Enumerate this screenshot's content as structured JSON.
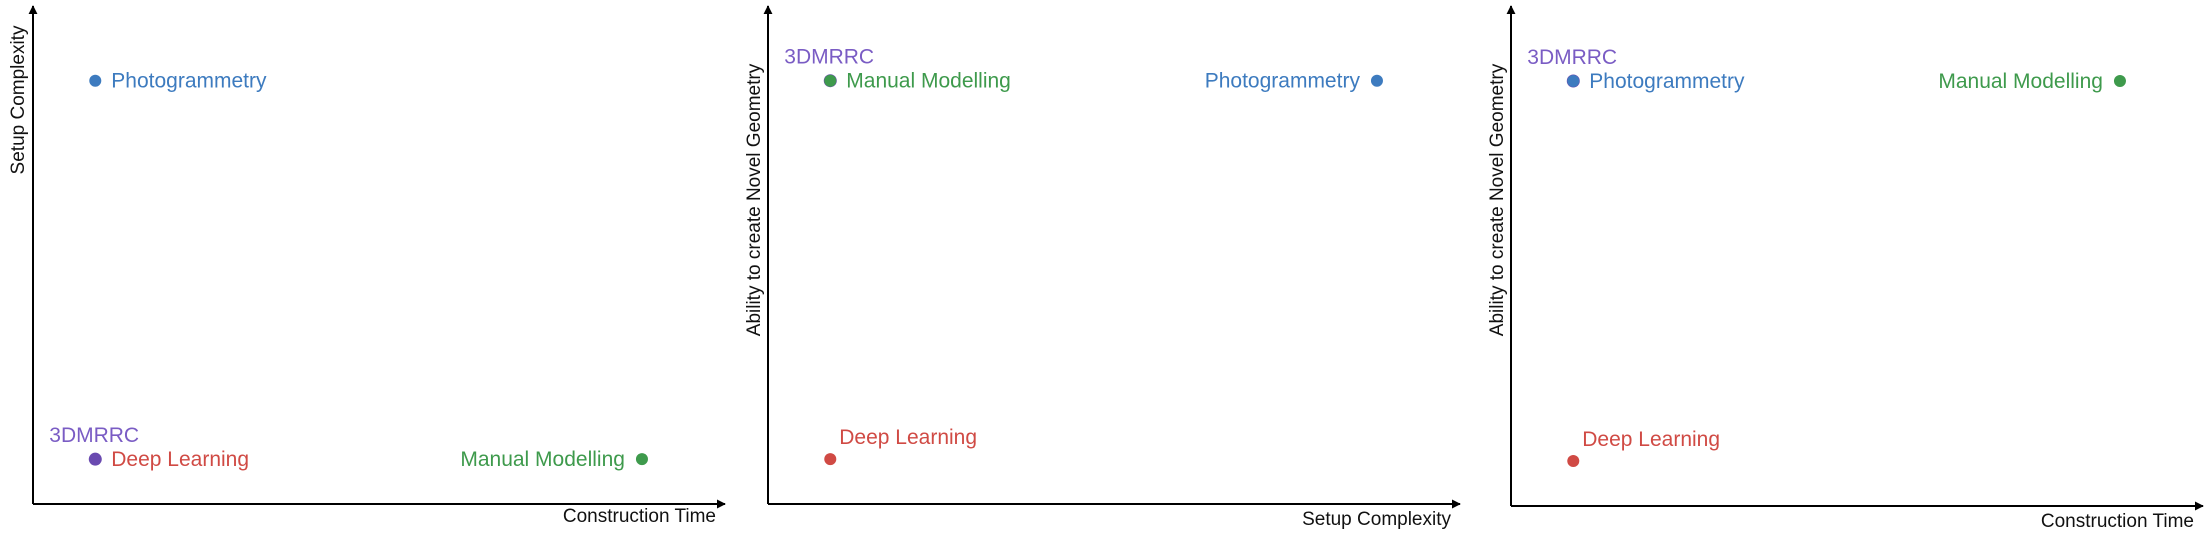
{
  "colors": {
    "axis": "#000000",
    "photogrammetry": "#3d7bbf",
    "3dmrrc": "#6a4ab0",
    "deep_learning": "#d04a44",
    "manual_modelling": "#3e9a4c",
    "label_3dmrrc": "#7a5cc4"
  },
  "chart_data": [
    {
      "type": "scatter",
      "xlabel": "Construction Time",
      "ylabel": "Setup Complexity",
      "xlim": [
        0,
        1
      ],
      "ylim": [
        0,
        1
      ],
      "grid": false,
      "points": [
        {
          "name": "Photogrammetry",
          "x": 0.09,
          "y": 0.85,
          "color_key": "photogrammetry",
          "label_side": "right"
        },
        {
          "name": "3DMRRC",
          "x": 0.09,
          "y": 0.09,
          "color_key": "3dmrrc",
          "label_side": "above-left"
        },
        {
          "name": "Deep Learning",
          "x": 0.09,
          "y": 0.09,
          "color_key": "deep_learning",
          "label_side": "right"
        },
        {
          "name": "Manual Modelling",
          "x": 0.88,
          "y": 0.09,
          "color_key": "manual_modelling",
          "label_side": "left"
        }
      ]
    },
    {
      "type": "scatter",
      "xlabel": "Setup Complexity",
      "ylabel": "Ability to create Novel Geometry",
      "xlim": [
        0,
        1
      ],
      "ylim": [
        0,
        1
      ],
      "grid": false,
      "points": [
        {
          "name": "3DMRRC",
          "x": 0.09,
          "y": 0.85,
          "color_key": "3dmrrc",
          "label_side": "above-left"
        },
        {
          "name": "Manual Modelling",
          "x": 0.09,
          "y": 0.85,
          "color_key": "manual_modelling",
          "label_side": "right"
        },
        {
          "name": "Photogrammetry",
          "x": 0.88,
          "y": 0.85,
          "color_key": "photogrammetry",
          "label_side": "left"
        },
        {
          "name": "Deep Learning",
          "x": 0.09,
          "y": 0.09,
          "color_key": "deep_learning",
          "label_side": "above-right"
        }
      ]
    },
    {
      "type": "scatter",
      "xlabel": "Construction Time",
      "ylabel": "Ability to create Novel Geometry",
      "xlim": [
        0,
        1
      ],
      "ylim": [
        0,
        1
      ],
      "grid": false,
      "points": [
        {
          "name": "3DMRRC",
          "x": 0.09,
          "y": 0.85,
          "color_key": "3dmrrc",
          "label_side": "above-left"
        },
        {
          "name": "Photogrammetry",
          "x": 0.09,
          "y": 0.85,
          "color_key": "photogrammetry",
          "label_side": "right"
        },
        {
          "name": "Manual Modelling",
          "x": 0.88,
          "y": 0.85,
          "color_key": "manual_modelling",
          "label_side": "left"
        },
        {
          "name": "Deep Learning",
          "x": 0.09,
          "y": 0.09,
          "color_key": "deep_learning",
          "label_side": "above-right"
        }
      ]
    }
  ]
}
